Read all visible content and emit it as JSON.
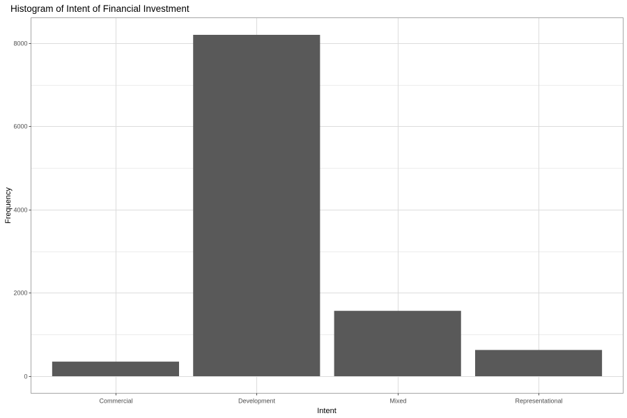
{
  "chart_data": {
    "type": "bar",
    "title": "Histogram of Intent of Financial Investment",
    "xlabel": "Intent",
    "ylabel": "Frequency",
    "categories": [
      "Commercial",
      "Development",
      "Mixed",
      "Representational"
    ],
    "values": [
      350,
      8200,
      1570,
      630
    ],
    "ylim": [
      -410,
      8610
    ],
    "yticks": [
      0,
      2000,
      4000,
      6000,
      8000
    ],
    "grid": true,
    "bar_color": "#595959"
  }
}
